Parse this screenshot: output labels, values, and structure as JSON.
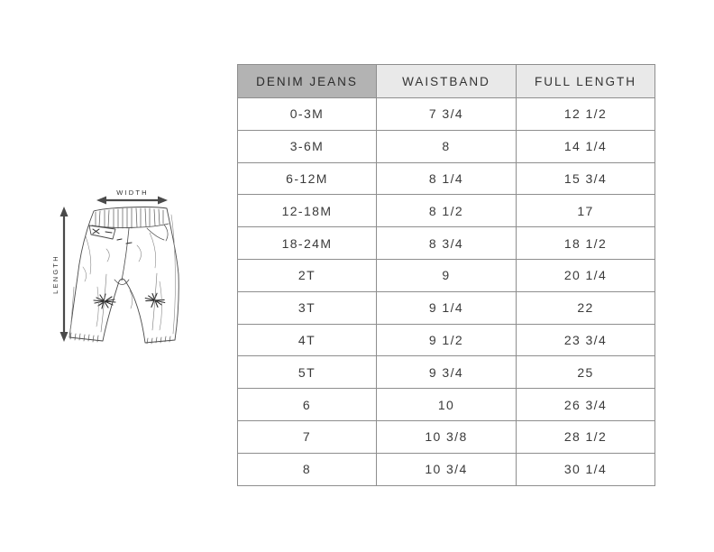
{
  "figure": {
    "width_label": "WIDTH",
    "length_label": "LENGTH"
  },
  "chart_data": {
    "type": "table",
    "title": "Denim jeans size chart with pants measurement diagram",
    "columns": [
      "DENIM JEANS",
      "WAISTBAND",
      "FULL LENGTH"
    ],
    "rows": [
      [
        "0-3M",
        "7 3/4",
        "12 1/2"
      ],
      [
        "3-6M",
        "8",
        "14 1/4"
      ],
      [
        "6-12M",
        "8 1/4",
        "15 3/4"
      ],
      [
        "12-18M",
        "8 1/2",
        "17"
      ],
      [
        "18-24M",
        "8 3/4",
        "18 1/2"
      ],
      [
        "2T",
        "9",
        "20 1/4"
      ],
      [
        "3T",
        "9 1/4",
        "22"
      ],
      [
        "4T",
        "9 1/2",
        "23 3/4"
      ],
      [
        "5T",
        "9 3/4",
        "25"
      ],
      [
        "6",
        "10",
        "26 3/4"
      ],
      [
        "7",
        "10 3/8",
        "28 1/2"
      ],
      [
        "8",
        "10 3/4",
        "30 1/4"
      ]
    ]
  },
  "colors": {
    "header_primary_bg": "#b3b3b3",
    "header_secondary_bg": "#e9e9e9",
    "table_border": "#8e8e8e",
    "text": "#3a3a3a",
    "sketch_stroke": "#4a4a4a"
  }
}
